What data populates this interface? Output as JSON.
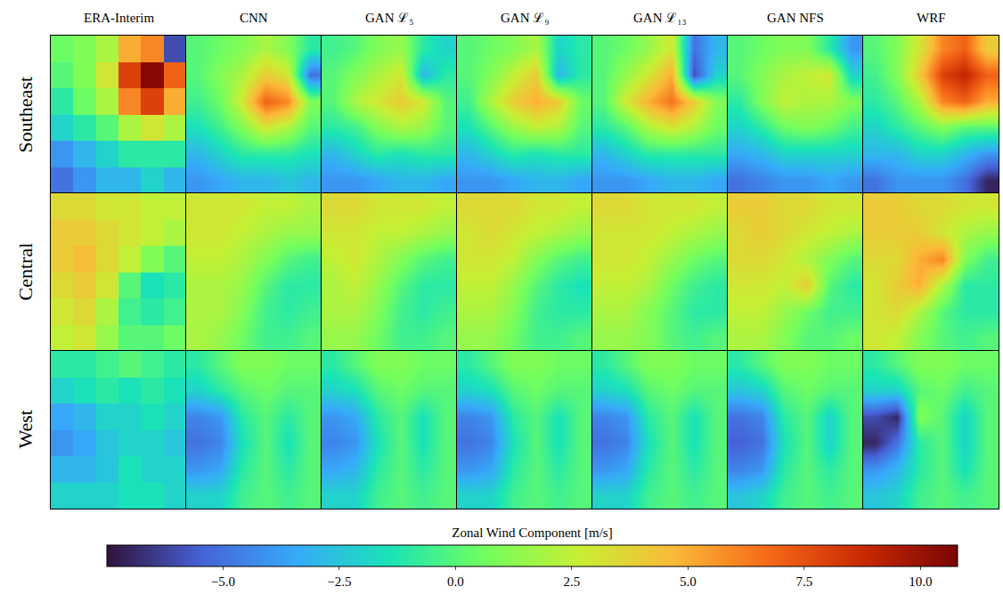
{
  "chart_data": {
    "type": "heatmap",
    "columns": [
      "ERA-Interim",
      "CNN",
      "GAN ℒ₅",
      "GAN ℒ₉",
      "GAN ℒ₁₃",
      "GAN NFS",
      "WRF"
    ],
    "rows": [
      "Southeast",
      "Central",
      "West"
    ],
    "tick_labels": false,
    "colorbar": {
      "title": "Zonal Wind Component [m/s]",
      "range": [
        -7.5,
        10.8
      ],
      "ticks": [
        {
          "value": -5,
          "label": "−5.0"
        },
        {
          "value": -2.5,
          "label": "−2.5"
        },
        {
          "value": 0,
          "label": "0.0"
        },
        {
          "value": 2.5,
          "label": "2.5"
        },
        {
          "value": 5,
          "label": "5.0"
        },
        {
          "value": 7.5,
          "label": "7.5"
        },
        {
          "value": 10,
          "label": "10.0"
        }
      ]
    },
    "cells": [
      [
        [
          [
            0.5,
            1,
            2,
            5,
            6,
            -6
          ],
          [
            0,
            1,
            3,
            8,
            10.5,
            7
          ],
          [
            -1,
            0.5,
            2,
            6,
            8,
            5
          ],
          [
            -2,
            -1,
            0,
            2,
            3,
            2
          ],
          [
            -4,
            -3,
            -2,
            -1,
            -1,
            -1
          ],
          [
            -5,
            -4,
            -3,
            -3,
            -2,
            -3
          ]
        ],
        [
          [
            0,
            0.5,
            1,
            2,
            1,
            -1
          ],
          [
            0,
            1,
            2,
            4,
            3,
            -5
          ],
          [
            -0.5,
            0.5,
            3,
            7,
            6,
            1
          ],
          [
            -1.5,
            -0.5,
            1,
            3,
            2,
            0
          ],
          [
            -3,
            -2,
            -1,
            -1,
            -1,
            -1.5
          ],
          [
            -4,
            -3.5,
            -3,
            -3,
            -2.5,
            -3
          ]
        ],
        [
          [
            -0.5,
            0,
            1,
            1.5,
            -1,
            -2
          ],
          [
            0,
            1,
            2,
            3,
            -3,
            -1
          ],
          [
            0,
            2,
            3,
            4,
            3,
            0
          ],
          [
            -1,
            -0.5,
            1,
            2,
            1.5,
            0
          ],
          [
            -3,
            -2,
            -1,
            -1.5,
            -1,
            -1
          ],
          [
            -4,
            -4,
            -3.5,
            -3,
            -3,
            -3.5
          ]
        ],
        [
          [
            0,
            0.5,
            1,
            2,
            -2,
            -1
          ],
          [
            0,
            1,
            2.5,
            4,
            -3,
            -1
          ],
          [
            -0.5,
            2,
            4,
            5,
            4,
            0.5
          ],
          [
            -1.5,
            0,
            1.5,
            2.5,
            2,
            0
          ],
          [
            -3,
            -2,
            -1,
            -1.5,
            -1,
            -1
          ],
          [
            -4,
            -4,
            -3.5,
            -3,
            -3,
            -3.5
          ]
        ],
        [
          [
            0,
            0.5,
            1.5,
            3,
            -5,
            -3
          ],
          [
            0,
            1.5,
            3,
            5,
            -6,
            -2
          ],
          [
            0,
            3,
            5,
            6.5,
            4,
            1
          ],
          [
            -1,
            0,
            2,
            3,
            2,
            0.5
          ],
          [
            -3,
            -2,
            -1,
            -1,
            -1,
            -1
          ],
          [
            -4,
            -4,
            -3.5,
            -3,
            -3,
            -3.5
          ]
        ],
        [
          [
            0,
            0.5,
            1,
            1,
            -1,
            -4
          ],
          [
            0,
            1,
            2,
            2.5,
            3,
            -2
          ],
          [
            -1,
            1,
            2.5,
            2,
            2,
            1
          ],
          [
            -2,
            -1,
            0.5,
            1,
            0.5,
            -0.5
          ],
          [
            -3.5,
            -3,
            -2,
            -2,
            -2,
            -2
          ],
          [
            -5,
            -4.5,
            -4,
            -4,
            -3.5,
            -4
          ]
        ],
        [
          [
            0,
            1,
            3,
            6,
            7,
            4
          ],
          [
            -0.5,
            1,
            4,
            8,
            9,
            7
          ],
          [
            -1,
            0,
            2,
            6,
            7,
            5
          ],
          [
            -2,
            -1,
            0,
            1,
            0,
            0
          ],
          [
            -3,
            -3,
            -2,
            -2,
            -3,
            -4
          ],
          [
            -5,
            -4,
            -4,
            -4,
            -5,
            -7
          ]
        ]
      ],
      [
        [
          [
            3.5,
            3.5,
            3,
            3,
            2.5,
            2.5
          ],
          [
            4,
            4,
            3.5,
            3,
            2.5,
            2
          ],
          [
            4,
            4.5,
            3.5,
            2.5,
            1,
            0
          ],
          [
            3.5,
            4,
            3,
            0,
            -1.5,
            -1
          ],
          [
            3,
            3.5,
            2,
            -0.5,
            -1,
            -0.5
          ],
          [
            2.5,
            3,
            1.5,
            0,
            0,
            0.5
          ]
        ],
        [
          [
            3,
            3,
            3,
            2.5,
            2.5,
            2
          ],
          [
            3,
            3,
            2.5,
            2,
            1.5,
            1.5
          ],
          [
            2.5,
            2.5,
            2,
            1,
            0,
            -0.5
          ],
          [
            2,
            2,
            1.5,
            0,
            -1,
            -1
          ],
          [
            2,
            2,
            1,
            -0.5,
            -1,
            -0.5
          ],
          [
            2,
            1.5,
            0.5,
            -0.5,
            -0.5,
            0
          ]
        ],
        [
          [
            3.5,
            3.5,
            3,
            3,
            3,
            2.5
          ],
          [
            3,
            3,
            2.5,
            2.5,
            2,
            1.5
          ],
          [
            2.5,
            3,
            2,
            1,
            0,
            -0.5
          ],
          [
            2,
            2.5,
            1.5,
            0,
            -1,
            -1
          ],
          [
            2,
            2,
            1,
            -0.5,
            -1,
            -0.5
          ],
          [
            1.5,
            1.5,
            0.5,
            -0.5,
            -0.5,
            0
          ]
        ],
        [
          [
            3.5,
            3.5,
            3.5,
            3,
            3,
            2.5
          ],
          [
            3,
            3.5,
            3,
            2.5,
            2,
            1.5
          ],
          [
            3,
            3,
            2.5,
            1,
            0,
            -0.5
          ],
          [
            2.5,
            2.5,
            1.5,
            0,
            -1,
            -1.5
          ],
          [
            2,
            2,
            1,
            -0.5,
            -1,
            -1
          ],
          [
            1.5,
            1.5,
            0.5,
            -0.5,
            -0.5,
            0
          ]
        ],
        [
          [
            3.5,
            3.5,
            3,
            3,
            3,
            2.5
          ],
          [
            3,
            3,
            3,
            2.5,
            2,
            1.5
          ],
          [
            3,
            3,
            2.5,
            1.5,
            0.5,
            0
          ],
          [
            2.5,
            2.5,
            2,
            0.5,
            -0.5,
            -1
          ],
          [
            2,
            2,
            1,
            0,
            -1,
            -1
          ],
          [
            1.5,
            1.5,
            1,
            0,
            -0.5,
            0
          ]
        ],
        [
          [
            4,
            4,
            3.5,
            3.5,
            3,
            3
          ],
          [
            3.5,
            4,
            3.5,
            3,
            2.5,
            2
          ],
          [
            3.5,
            3.5,
            3,
            2,
            1,
            0
          ],
          [
            3,
            3,
            2.5,
            4,
            0,
            -1
          ],
          [
            2.5,
            2.5,
            1.5,
            0.5,
            -0.5,
            -0.5
          ],
          [
            2,
            2,
            1,
            0,
            0,
            0.5
          ]
        ],
        [
          [
            4,
            4,
            3.5,
            3.5,
            3,
            3
          ],
          [
            4,
            4,
            4,
            3,
            2,
            1.5
          ],
          [
            3.5,
            3.5,
            5,
            6,
            1,
            -0.5
          ],
          [
            3,
            4,
            5,
            2,
            -1,
            -1
          ],
          [
            3,
            3.5,
            2,
            0,
            -1,
            -1
          ],
          [
            3,
            2.5,
            1,
            0,
            -0.5,
            0
          ]
        ]
      ],
      [
        [
          [
            -1,
            -1,
            -0.5,
            0,
            -0.5,
            -1
          ],
          [
            -2,
            -1.5,
            -1,
            -1.5,
            -1,
            -1.5
          ],
          [
            -3.5,
            -3,
            -2,
            -2,
            -1.5,
            -2
          ],
          [
            -4,
            -3.5,
            -2.5,
            -2,
            -2,
            -2.5
          ],
          [
            -3,
            -3,
            -2.5,
            -1.5,
            -2,
            -2
          ],
          [
            -2,
            -2,
            -2,
            -1.5,
            -1.5,
            -2
          ]
        ],
        [
          [
            -1,
            0,
            1,
            1,
            0.5,
            0.5
          ],
          [
            -2,
            -1,
            0,
            0.5,
            0,
            0
          ],
          [
            -4.5,
            -4,
            -1,
            0,
            -1,
            0
          ],
          [
            -5,
            -4.5,
            -1.5,
            0,
            -1.5,
            0
          ],
          [
            -4,
            -3.5,
            -1,
            0,
            -1,
            0
          ],
          [
            -2,
            -2,
            -0.5,
            0,
            -0.5,
            0
          ]
        ],
        [
          [
            -1,
            0,
            1,
            1,
            0.5,
            0.5
          ],
          [
            -2,
            -1.5,
            0,
            0.5,
            0,
            0
          ],
          [
            -4,
            -3.5,
            -1,
            0,
            -1.5,
            0
          ],
          [
            -4.5,
            -4,
            -1.5,
            0,
            -1.5,
            0
          ],
          [
            -3.5,
            -3,
            -1,
            0,
            -1,
            0
          ],
          [
            -2,
            -2,
            -0.5,
            0,
            -0.5,
            0
          ]
        ],
        [
          [
            -1,
            0,
            1,
            1,
            0.5,
            0.5
          ],
          [
            -2,
            -1.5,
            0,
            0.5,
            0,
            0
          ],
          [
            -4.5,
            -4,
            -1,
            0,
            -1.5,
            0
          ],
          [
            -5,
            -4.5,
            -1.5,
            0,
            -1.5,
            0
          ],
          [
            -4,
            -3.5,
            -1,
            0,
            -1,
            0
          ],
          [
            -2,
            -2,
            -0.5,
            0,
            -0.5,
            0
          ]
        ],
        [
          [
            -1,
            0,
            1,
            1,
            0.5,
            0.5
          ],
          [
            -2,
            -1.5,
            0,
            0.5,
            0,
            0
          ],
          [
            -4.5,
            -4,
            -1,
            0,
            -1.5,
            0
          ],
          [
            -5,
            -4.5,
            -1.5,
            0,
            -1.5,
            0
          ],
          [
            -4,
            -3.5,
            -1,
            0,
            -1,
            0
          ],
          [
            -2,
            -2,
            -0.5,
            0,
            -0.5,
            0
          ]
        ],
        [
          [
            -1,
            0,
            1,
            1,
            0.5,
            0.5
          ],
          [
            -2.5,
            -2,
            0,
            0.5,
            0,
            0
          ],
          [
            -5,
            -4.5,
            -1,
            0,
            -2,
            0
          ],
          [
            -5.5,
            -5,
            -1.5,
            0,
            -2,
            0
          ],
          [
            -4.5,
            -4,
            -1,
            0,
            -1,
            0
          ],
          [
            -2.5,
            -2,
            -0.5,
            0,
            -0.5,
            0
          ]
        ],
        [
          [
            -1,
            0,
            1,
            1,
            0.5,
            0.5
          ],
          [
            -2,
            -2,
            0,
            0.5,
            -0.5,
            0
          ],
          [
            -6,
            -7,
            1,
            0,
            -2,
            0
          ],
          [
            -7,
            -5,
            -1,
            0,
            -2,
            0
          ],
          [
            -4,
            -3,
            -1,
            0,
            -1.5,
            0
          ],
          [
            -2.5,
            -2,
            -0.5,
            0,
            -0.5,
            0
          ]
        ]
      ]
    ]
  }
}
